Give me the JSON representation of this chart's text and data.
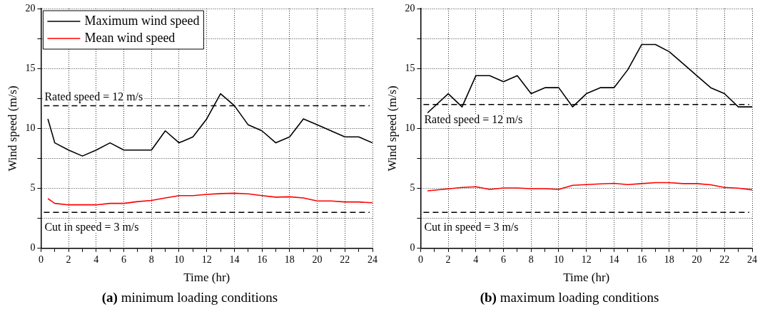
{
  "chart_data": [
    {
      "type": "line",
      "title": "(a) minimum loading conditions",
      "xlabel": "Time (hr)",
      "ylabel": "Wind speed (m/s)",
      "x": [
        0.5,
        1,
        2,
        3,
        4,
        5,
        6,
        7,
        8,
        9,
        10,
        11,
        12,
        13,
        14,
        15,
        16,
        17,
        18,
        19,
        20,
        21,
        22,
        23,
        24
      ],
      "series": [
        {
          "name": "Maximum wind speed",
          "color": "#000000",
          "values": [
            10.8,
            8.8,
            8.2,
            7.7,
            8.2,
            8.8,
            8.2,
            8.2,
            8.2,
            9.8,
            8.8,
            9.3,
            10.8,
            12.9,
            11.9,
            10.3,
            9.8,
            8.8,
            9.3,
            10.8,
            10.3,
            9.8,
            9.3,
            9.3,
            8.8
          ]
        },
        {
          "name": "Mean wind speed",
          "color": "#ff0000",
          "values": [
            4.15,
            3.75,
            3.63,
            3.63,
            3.63,
            3.75,
            3.75,
            3.9,
            4.0,
            4.2,
            4.4,
            4.4,
            4.5,
            4.57,
            4.6,
            4.55,
            4.4,
            4.27,
            4.3,
            4.2,
            3.95,
            3.95,
            3.87,
            3.87,
            3.8
          ]
        }
      ],
      "xlim": [
        0,
        24
      ],
      "xticks": [
        0,
        {
          "value": 1,
          "label": null
        },
        2,
        {
          "value": 3,
          "label": null
        },
        4,
        {
          "value": 5,
          "label": null
        },
        6,
        {
          "value": 7,
          "label": null
        },
        8,
        {
          "value": 9,
          "label": null
        },
        10,
        {
          "value": 11,
          "label": null
        },
        12,
        {
          "value": 13,
          "label": null
        },
        14,
        {
          "value": 15,
          "label": null
        },
        16,
        {
          "value": 17,
          "label": null
        },
        18,
        {
          "value": 19,
          "label": null
        },
        20,
        {
          "value": 21,
          "label": null
        },
        22,
        {
          "value": 23,
          "label": null
        },
        24
      ],
      "ylim": [
        0,
        20
      ],
      "yticks": [
        0,
        {
          "value": 2.5,
          "label": null
        },
        5,
        {
          "value": 7.5,
          "label": null
        },
        10,
        {
          "value": 12.5,
          "label": null
        },
        15,
        {
          "value": 17.5,
          "label": null
        },
        20
      ],
      "ref_lines": [
        {
          "axis": "y",
          "value": 11.9,
          "color": "#000000",
          "line_style": "dashed",
          "label": "Rated speed = 12 m/s"
        },
        {
          "axis": "y",
          "value": 3,
          "color": "#000000",
          "line_style": "dashed",
          "label": "Cut in speed = 3 m/s"
        }
      ],
      "grid": true,
      "legend": "top left",
      "marker": "none",
      "line_style": "solid"
    },
    {
      "type": "line",
      "title": "(b) maximum loading conditions",
      "xlabel": "Time (hr)",
      "ylabel": "Wind speed (m/s)",
      "x": [
        0.5,
        2,
        3,
        4,
        5,
        6,
        7,
        8,
        9,
        10,
        11,
        12,
        13,
        14,
        15,
        16,
        17,
        18,
        19,
        20,
        21,
        22,
        23,
        24
      ],
      "series": [
        {
          "color": "#000000",
          "values": [
            11.3,
            12.9,
            11.8,
            14.4,
            14.4,
            13.9,
            14.4,
            12.9,
            13.4,
            13.4,
            11.8,
            12.9,
            13.4,
            13.4,
            14.9,
            17.0,
            17.0,
            16.4,
            15.4,
            14.4,
            13.4,
            12.9,
            11.8,
            11.8
          ]
        },
        {
          "color": "#ff0000",
          "values": [
            4.8,
            4.96,
            5.08,
            5.14,
            4.92,
            5.04,
            5.04,
            4.98,
            4.98,
            4.92,
            5.26,
            5.32,
            5.38,
            5.42,
            5.32,
            5.4,
            5.48,
            5.48,
            5.4,
            5.4,
            5.3,
            5.08,
            5.02,
            4.88
          ]
        }
      ],
      "xlim": [
        0,
        24
      ],
      "xticks": [
        0,
        {
          "value": 1,
          "label": null
        },
        2,
        {
          "value": 3,
          "label": null
        },
        4,
        {
          "value": 5,
          "label": null
        },
        6,
        {
          "value": 7,
          "label": null
        },
        8,
        {
          "value": 9,
          "label": null
        },
        10,
        {
          "value": 11,
          "label": null
        },
        12,
        {
          "value": 13,
          "label": null
        },
        14,
        {
          "value": 15,
          "label": null
        },
        16,
        {
          "value": 17,
          "label": null
        },
        18,
        {
          "value": 19,
          "label": null
        },
        20,
        {
          "value": 21,
          "label": null
        },
        22,
        {
          "value": 23,
          "label": null
        },
        24
      ],
      "ylim": [
        0,
        20
      ],
      "yticks": [
        0,
        {
          "value": 2.5,
          "label": null
        },
        5,
        {
          "value": 7.5,
          "label": null
        },
        10,
        {
          "value": 12.5,
          "label": null
        },
        15,
        {
          "value": 17.5,
          "label": null
        },
        20
      ],
      "ref_lines": [
        {
          "axis": "y",
          "value": 12,
          "color": "#000000",
          "line_style": "dashed",
          "label": "Rated speed = 12 m/s"
        },
        {
          "axis": "y",
          "value": 3,
          "color": "#000000",
          "line_style": "dashed",
          "label": "Cut in speed = 3 m/s"
        }
      ],
      "grid": true,
      "marker": "none",
      "line_style": "solid"
    }
  ]
}
